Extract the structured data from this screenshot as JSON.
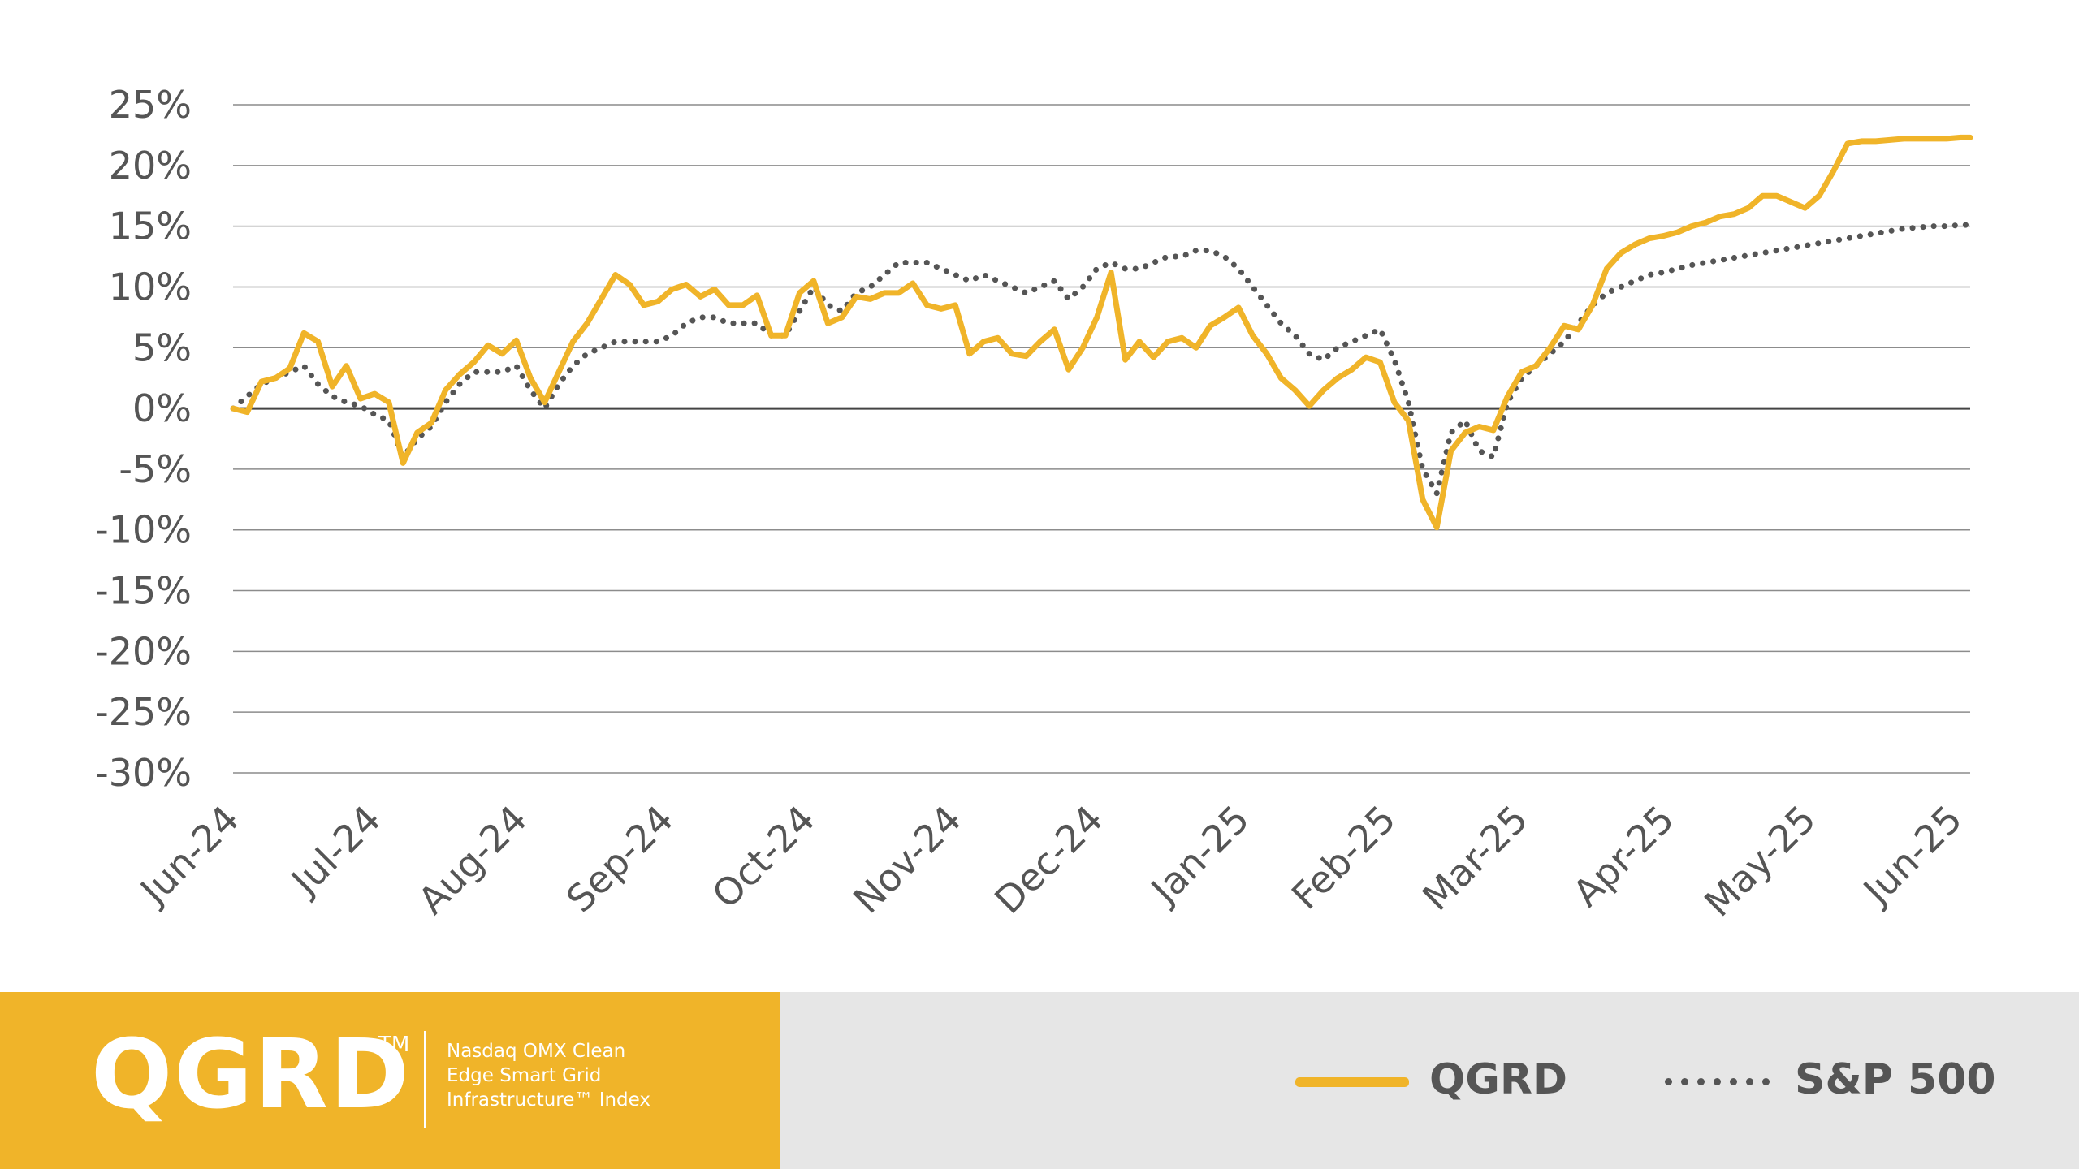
{
  "brand": {
    "ticker": "QGRD",
    "trademark": "TM",
    "description_lines": [
      "Nasdaq OMX Clean",
      "Edge Smart Grid",
      "Infrastructure™ Index"
    ]
  },
  "legend": {
    "items": [
      {
        "label": "QGRD",
        "style": "solid",
        "color": "#F0B429"
      },
      {
        "label": "S&P 500",
        "style": "dotted",
        "color": "#555555"
      }
    ]
  },
  "colors": {
    "qgrd": "#F0B429",
    "sp500": "#555555",
    "gridline": "#8C8C8C",
    "zero_line": "#444444",
    "tick_text": "#555555",
    "brand_panel": "#F0B429",
    "legend_panel": "#E6E6E6"
  },
  "chart_data": {
    "type": "line",
    "title": "",
    "xlabel": "",
    "ylabel": "",
    "ylim": [
      -30,
      25
    ],
    "y_ticks": [
      25,
      20,
      15,
      10,
      5,
      0,
      -5,
      -10,
      -15,
      -20,
      -25,
      -30
    ],
    "y_tick_labels": [
      "25%",
      "20%",
      "15%",
      "10%",
      "5%",
      "0%",
      "-5%",
      "-10%",
      "-15%",
      "-20%",
      "-25%",
      "-30%"
    ],
    "x_tick_labels": [
      "Jun-24",
      "Jul-24",
      "Aug-24",
      "Sep-24",
      "Oct-24",
      "Nov-24",
      "Dec-24",
      "Jan-25",
      "Feb-25",
      "Mar-25",
      "Apr-25",
      "May-25",
      "Jun-25"
    ],
    "x_tick_dates": [
      "2024-06-01",
      "2024-07-01",
      "2024-08-01",
      "2024-09-01",
      "2024-10-01",
      "2024-11-01",
      "2024-12-01",
      "2025-01-01",
      "2025-02-01",
      "2025-03-01",
      "2025-04-01",
      "2025-05-01",
      "2025-06-01"
    ],
    "xlim": [
      "2024-06-01",
      "2025-06-04"
    ],
    "grid": "horizontal",
    "legend_position": "bottom-right",
    "series": [
      {
        "name": "QGRD",
        "style": "solid",
        "x": [
          "2024-06-01",
          "2024-06-04",
          "2024-06-07",
          "2024-06-10",
          "2024-06-13",
          "2024-06-16",
          "2024-06-19",
          "2024-06-22",
          "2024-06-25",
          "2024-06-28",
          "2024-07-01",
          "2024-07-04",
          "2024-07-07",
          "2024-07-10",
          "2024-07-13",
          "2024-07-16",
          "2024-07-19",
          "2024-07-22",
          "2024-07-25",
          "2024-07-28",
          "2024-07-31",
          "2024-08-03",
          "2024-08-06",
          "2024-08-09",
          "2024-08-12",
          "2024-08-15",
          "2024-08-18",
          "2024-08-21",
          "2024-08-24",
          "2024-08-27",
          "2024-08-30",
          "2024-09-02",
          "2024-09-05",
          "2024-09-08",
          "2024-09-11",
          "2024-09-14",
          "2024-09-17",
          "2024-09-20",
          "2024-09-23",
          "2024-09-26",
          "2024-09-29",
          "2024-10-02",
          "2024-10-05",
          "2024-10-08",
          "2024-10-11",
          "2024-10-14",
          "2024-10-17",
          "2024-10-20",
          "2024-10-23",
          "2024-10-26",
          "2024-10-29",
          "2024-11-01",
          "2024-11-04",
          "2024-11-07",
          "2024-11-10",
          "2024-11-13",
          "2024-11-16",
          "2024-11-19",
          "2024-11-22",
          "2024-11-25",
          "2024-11-28",
          "2024-12-01",
          "2024-12-04",
          "2024-12-07",
          "2024-12-10",
          "2024-12-13",
          "2024-12-16",
          "2024-12-19",
          "2024-12-22",
          "2024-12-25",
          "2024-12-28",
          "2024-12-31",
          "2025-01-03",
          "2025-01-06",
          "2025-01-09",
          "2025-01-12",
          "2025-01-15",
          "2025-01-18",
          "2025-01-21",
          "2025-01-24",
          "2025-01-27",
          "2025-01-30",
          "2025-02-02",
          "2025-02-05",
          "2025-02-08",
          "2025-02-11",
          "2025-02-14",
          "2025-02-17",
          "2025-02-20",
          "2025-02-23",
          "2025-02-26",
          "2025-03-01",
          "2025-03-04",
          "2025-03-07",
          "2025-03-10",
          "2025-03-13",
          "2025-03-16",
          "2025-03-19",
          "2025-03-22",
          "2025-03-25",
          "2025-03-28",
          "2025-03-31",
          "2025-04-03",
          "2025-04-06",
          "2025-04-09",
          "2025-04-12",
          "2025-04-15",
          "2025-04-18",
          "2025-04-21",
          "2025-04-24",
          "2025-04-27",
          "2025-04-30",
          "2025-05-03",
          "2025-05-06",
          "2025-05-09",
          "2025-05-12",
          "2025-05-15",
          "2025-05-18",
          "2025-05-21",
          "2025-05-24",
          "2025-05-27",
          "2025-05-30",
          "2025-06-02",
          "2025-06-04"
        ],
        "values": [
          0,
          -0.3,
          2.2,
          2.5,
          3.3,
          6.2,
          5.5,
          1.8,
          3.5,
          0.8,
          1.2,
          0.5,
          -4.5,
          -2.0,
          -1.2,
          1.5,
          2.8,
          3.8,
          5.2,
          4.5,
          5.6,
          2.5,
          0.5,
          3.0,
          5.5,
          7.0,
          9.0,
          11.0,
          10.2,
          8.5,
          8.8,
          9.8,
          10.2,
          9.2,
          9.8,
          8.5,
          8.5,
          9.3,
          6.0,
          6.0,
          9.5,
          10.5,
          7.0,
          7.5,
          9.2,
          9.0,
          9.5,
          9.5,
          10.3,
          8.5,
          8.2,
          8.5,
          4.5,
          5.5,
          5.8,
          4.5,
          4.3,
          5.5,
          6.5,
          3.2,
          5.0,
          7.5,
          11.2,
          4.0,
          5.5,
          4.2,
          5.5,
          5.8,
          5.0,
          6.8,
          7.5,
          8.3,
          6.0,
          4.5,
          2.5,
          1.5,
          0.2,
          1.5,
          2.5,
          3.2,
          4.2,
          3.8,
          0.5,
          -1.0,
          -7.5,
          -9.8,
          -3.5,
          -2.0,
          -1.5,
          -1.8,
          1.0,
          3.0,
          3.5,
          5.0,
          6.8,
          6.5,
          8.5,
          11.5,
          12.8,
          13.5,
          14.0,
          14.2,
          14.5,
          15.0,
          15.3,
          15.8,
          16.0,
          16.5,
          17.5,
          17.5,
          17.0,
          16.5,
          17.5,
          19.5,
          21.8,
          22.0,
          22.0,
          22.1,
          22.2,
          22.2,
          22.2,
          22.2,
          22.3,
          22.3
        ]
      },
      {
        "name": "S&P 500",
        "style": "dotted",
        "x": [
          "2024-06-01",
          "2024-06-04",
          "2024-06-07",
          "2024-06-10",
          "2024-06-13",
          "2024-06-16",
          "2024-06-19",
          "2024-06-22",
          "2024-06-25",
          "2024-06-28",
          "2024-07-01",
          "2024-07-04",
          "2024-07-07",
          "2024-07-10",
          "2024-07-13",
          "2024-07-16",
          "2024-07-19",
          "2024-07-22",
          "2024-07-25",
          "2024-07-28",
          "2024-07-31",
          "2024-08-03",
          "2024-08-06",
          "2024-08-09",
          "2024-08-12",
          "2024-08-15",
          "2024-08-18",
          "2024-08-21",
          "2024-08-24",
          "2024-08-27",
          "2024-08-30",
          "2024-09-02",
          "2024-09-05",
          "2024-09-08",
          "2024-09-11",
          "2024-09-14",
          "2024-09-17",
          "2024-09-20",
          "2024-09-23",
          "2024-09-26",
          "2024-09-29",
          "2024-10-02",
          "2024-10-05",
          "2024-10-08",
          "2024-10-11",
          "2024-10-14",
          "2024-10-17",
          "2024-10-20",
          "2024-10-23",
          "2024-10-26",
          "2024-10-29",
          "2024-11-01",
          "2024-11-04",
          "2024-11-07",
          "2024-11-10",
          "2024-11-13",
          "2024-11-16",
          "2024-11-19",
          "2024-11-22",
          "2024-11-25",
          "2024-11-28",
          "2024-12-01",
          "2024-12-04",
          "2024-12-07",
          "2024-12-10",
          "2024-12-13",
          "2024-12-16",
          "2024-12-19",
          "2024-12-22",
          "2024-12-25",
          "2024-12-28",
          "2024-12-31",
          "2025-01-03",
          "2025-01-06",
          "2025-01-09",
          "2025-01-12",
          "2025-01-15",
          "2025-01-18",
          "2025-01-21",
          "2025-01-24",
          "2025-01-27",
          "2025-01-30",
          "2025-02-02",
          "2025-02-05",
          "2025-02-08",
          "2025-02-11",
          "2025-02-14",
          "2025-02-17",
          "2025-02-20",
          "2025-02-23",
          "2025-02-26",
          "2025-03-01",
          "2025-03-04",
          "2025-03-07",
          "2025-03-10",
          "2025-03-13",
          "2025-03-16",
          "2025-03-19",
          "2025-03-22",
          "2025-03-25",
          "2025-03-28",
          "2025-03-31",
          "2025-04-03",
          "2025-04-06",
          "2025-04-09",
          "2025-04-12",
          "2025-04-15",
          "2025-04-18",
          "2025-04-21",
          "2025-04-24",
          "2025-04-27",
          "2025-04-30",
          "2025-05-03",
          "2025-05-06",
          "2025-05-09",
          "2025-05-12",
          "2025-05-15",
          "2025-05-18",
          "2025-05-21",
          "2025-05-24",
          "2025-05-27",
          "2025-05-30",
          "2025-06-02",
          "2025-06-04"
        ],
        "values": [
          0,
          1.0,
          2.0,
          2.5,
          3.0,
          3.5,
          2.0,
          1.0,
          0.5,
          0.2,
          -0.5,
          -1.0,
          -4.0,
          -2.5,
          -1.5,
          0.5,
          2.0,
          3.0,
          3.0,
          3.0,
          3.5,
          1.5,
          0,
          2.0,
          3.5,
          4.5,
          5.0,
          5.5,
          5.5,
          5.5,
          5.5,
          6.0,
          7.0,
          7.5,
          7.5,
          7.0,
          7.0,
          7.0,
          6.0,
          6.0,
          8.0,
          10.0,
          8.5,
          8.0,
          9.5,
          10.0,
          11.0,
          12.0,
          12.0,
          12.0,
          11.5,
          11.0,
          10.5,
          11.0,
          10.5,
          10.0,
          9.5,
          10.0,
          10.5,
          9.0,
          10.0,
          11.5,
          12.0,
          11.5,
          11.5,
          12.0,
          12.5,
          12.5,
          13.0,
          13.0,
          12.5,
          11.5,
          10.0,
          8.5,
          7.0,
          6.0,
          4.5,
          4.0,
          5.0,
          5.5,
          6.0,
          6.5,
          4.0,
          0.5,
          -5.0,
          -7.0,
          -2.0,
          -1.0,
          -3.5,
          -4.0,
          0.5,
          2.5,
          3.5,
          4.5,
          5.5,
          7.0,
          8.5,
          9.5,
          10.0,
          10.5,
          11.0,
          11.2,
          11.5,
          11.8,
          12.0,
          12.2,
          12.4,
          12.6,
          12.8,
          13.0,
          13.2,
          13.4,
          13.6,
          13.8,
          14.0,
          14.2,
          14.4,
          14.6,
          14.8,
          14.9,
          15.0,
          15.0,
          15.1,
          15.1
        ]
      }
    ]
  }
}
